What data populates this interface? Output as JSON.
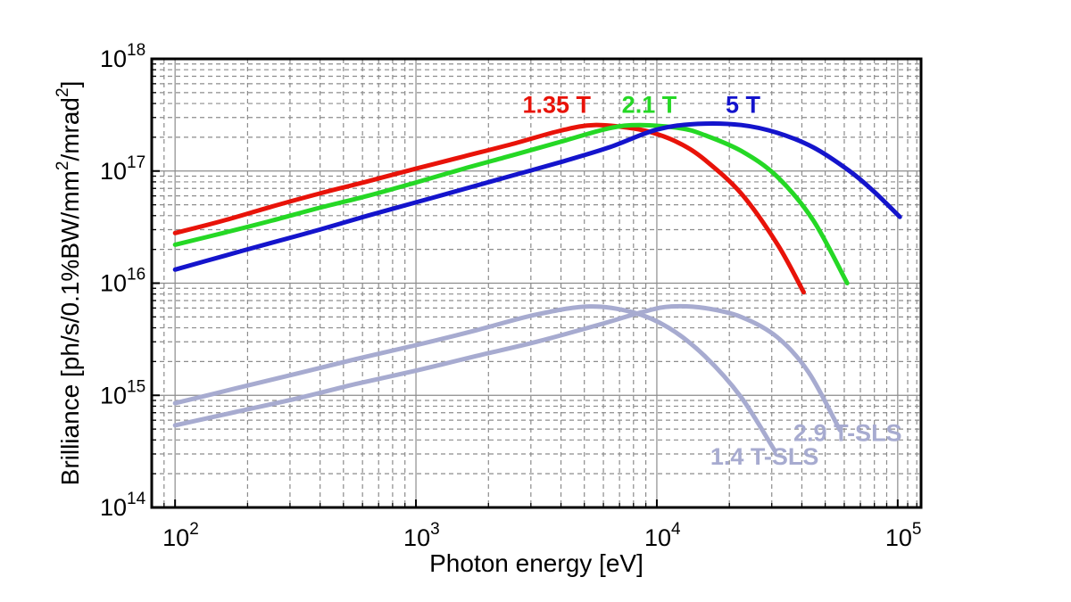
{
  "page": {
    "background": "#ffffff"
  },
  "chart_data": {
    "type": "line",
    "title": "",
    "xlabel": "Photon energy [eV]",
    "ylabel": "Brilliance [ph/s/0.1%BW/mm²/mrad²]",
    "xscale": "log",
    "yscale": "log",
    "xlim": [
      80,
      125000
    ],
    "ylim": [
      100000000000000.0,
      1e+18
    ],
    "x_tick_exponents": [
      2,
      3,
      4,
      5
    ],
    "y_tick_exponents": [
      14,
      15,
      16,
      17,
      18
    ],
    "grid": {
      "major": "solid",
      "minor": "dashed",
      "color": "#8c8c8c"
    },
    "legend_position": "inline-labels",
    "series": [
      {
        "name": "1.4 T-SLS",
        "label": "1.4 T-SLS",
        "color": "#a7abd0",
        "label_pos": [
          28000,
          240000000000000.0
        ],
        "points": [
          [
            100,
            850000000000000.0
          ],
          [
            178,
            1150000000000000.0
          ],
          [
            316,
            1550000000000000.0
          ],
          [
            562,
            2100000000000000.0
          ],
          [
            1000,
            2800000000000000.0
          ],
          [
            1780,
            3800000000000000.0
          ],
          [
            3160,
            5250000000000000.0
          ],
          [
            5250,
            6200000000000000.0
          ],
          [
            7940,
            5500000000000000.0
          ],
          [
            11200,
            4000000000000000.0
          ],
          [
            15800,
            2240000000000000.0
          ],
          [
            22400,
            960000000000000.0
          ],
          [
            30900,
            320000000000000.0
          ]
        ]
      },
      {
        "name": "2.9 T-SLS",
        "label": "2.9 T-SLS",
        "color": "#a7abd0",
        "label_pos": [
          62000,
          390000000000000.0
        ],
        "points": [
          [
            100,
            540000000000000.0
          ],
          [
            178,
            710000000000000.0
          ],
          [
            316,
            930000000000000.0
          ],
          [
            562,
            1260000000000000.0
          ],
          [
            1000,
            1660000000000000.0
          ],
          [
            1780,
            2240000000000000.0
          ],
          [
            3160,
            3000000000000000.0
          ],
          [
            5620,
            4200000000000000.0
          ],
          [
            8910,
            5600000000000000.0
          ],
          [
            11500,
            6200000000000000.0
          ],
          [
            15800,
            6000000000000000.0
          ],
          [
            22400,
            5000000000000000.0
          ],
          [
            31600,
            3300000000000000.0
          ],
          [
            42700,
            1600000000000000.0
          ],
          [
            57500,
            490000000000000.0
          ]
        ]
      },
      {
        "name": "1.35 T",
        "label": "1.35 T",
        "color": "#e81309",
        "label_pos": [
          3840,
          3.3e+17
        ],
        "points": [
          [
            100,
            2.8e+16
          ],
          [
            158,
            3.6e+16
          ],
          [
            251,
            4.8e+16
          ],
          [
            398,
            6.3e+16
          ],
          [
            631,
            8.1e+16
          ],
          [
            1000,
            1.05e+17
          ],
          [
            1580,
            1.35e+17
          ],
          [
            2510,
            1.74e+17
          ],
          [
            3980,
            2.29e+17
          ],
          [
            5500,
            2.57e+17
          ],
          [
            7940,
            2.4e+17
          ],
          [
            10000,
            2.14e+17
          ],
          [
            12600,
            1.74e+17
          ],
          [
            15800,
            1.26e+17
          ],
          [
            22400,
            6.3e+16
          ],
          [
            31600,
            2.24e+16
          ],
          [
            40700,
            8300000000000000.0
          ]
        ]
      },
      {
        "name": "2.1 T",
        "label": "2.1 T",
        "color": "#25d825",
        "label_pos": [
          9300,
          3.3e+17
        ],
        "points": [
          [
            100,
            2.2e+16
          ],
          [
            158,
            2.8e+16
          ],
          [
            251,
            3.6e+16
          ],
          [
            398,
            4.7e+16
          ],
          [
            631,
            6e+16
          ],
          [
            1000,
            7.9e+16
          ],
          [
            1580,
            1.05e+17
          ],
          [
            2510,
            1.38e+17
          ],
          [
            3980,
            1.82e+17
          ],
          [
            6310,
            2.4e+17
          ],
          [
            8510,
            2.57e+17
          ],
          [
            12600,
            2.4e+17
          ],
          [
            15800,
            2.09e+17
          ],
          [
            22400,
            1.51e+17
          ],
          [
            31600,
            8.9e+16
          ],
          [
            44700,
            3.6e+16
          ],
          [
            61700,
            1e+16
          ]
        ]
      },
      {
        "name": "5 T",
        "label": "5 T",
        "color": "#1414cc",
        "label_pos": [
          22800,
          3.3e+17
        ],
        "points": [
          [
            100,
            1.32e+16
          ],
          [
            158,
            1.74e+16
          ],
          [
            251,
            2.29e+16
          ],
          [
            398,
            3e+16
          ],
          [
            631,
            4e+16
          ],
          [
            1000,
            5.25e+16
          ],
          [
            1580,
            6.9e+16
          ],
          [
            2510,
            9.1e+16
          ],
          [
            3980,
            1.2e+17
          ],
          [
            6310,
            1.62e+17
          ],
          [
            10000,
            2.34e+17
          ],
          [
            14800,
            2.63e+17
          ],
          [
            22400,
            2.57e+17
          ],
          [
            31600,
            2.19e+17
          ],
          [
            44700,
            1.62e+17
          ],
          [
            63100,
            1e+17
          ],
          [
            79400,
            6.6e+16
          ],
          [
            102000,
            3.9e+16
          ]
        ]
      }
    ]
  }
}
